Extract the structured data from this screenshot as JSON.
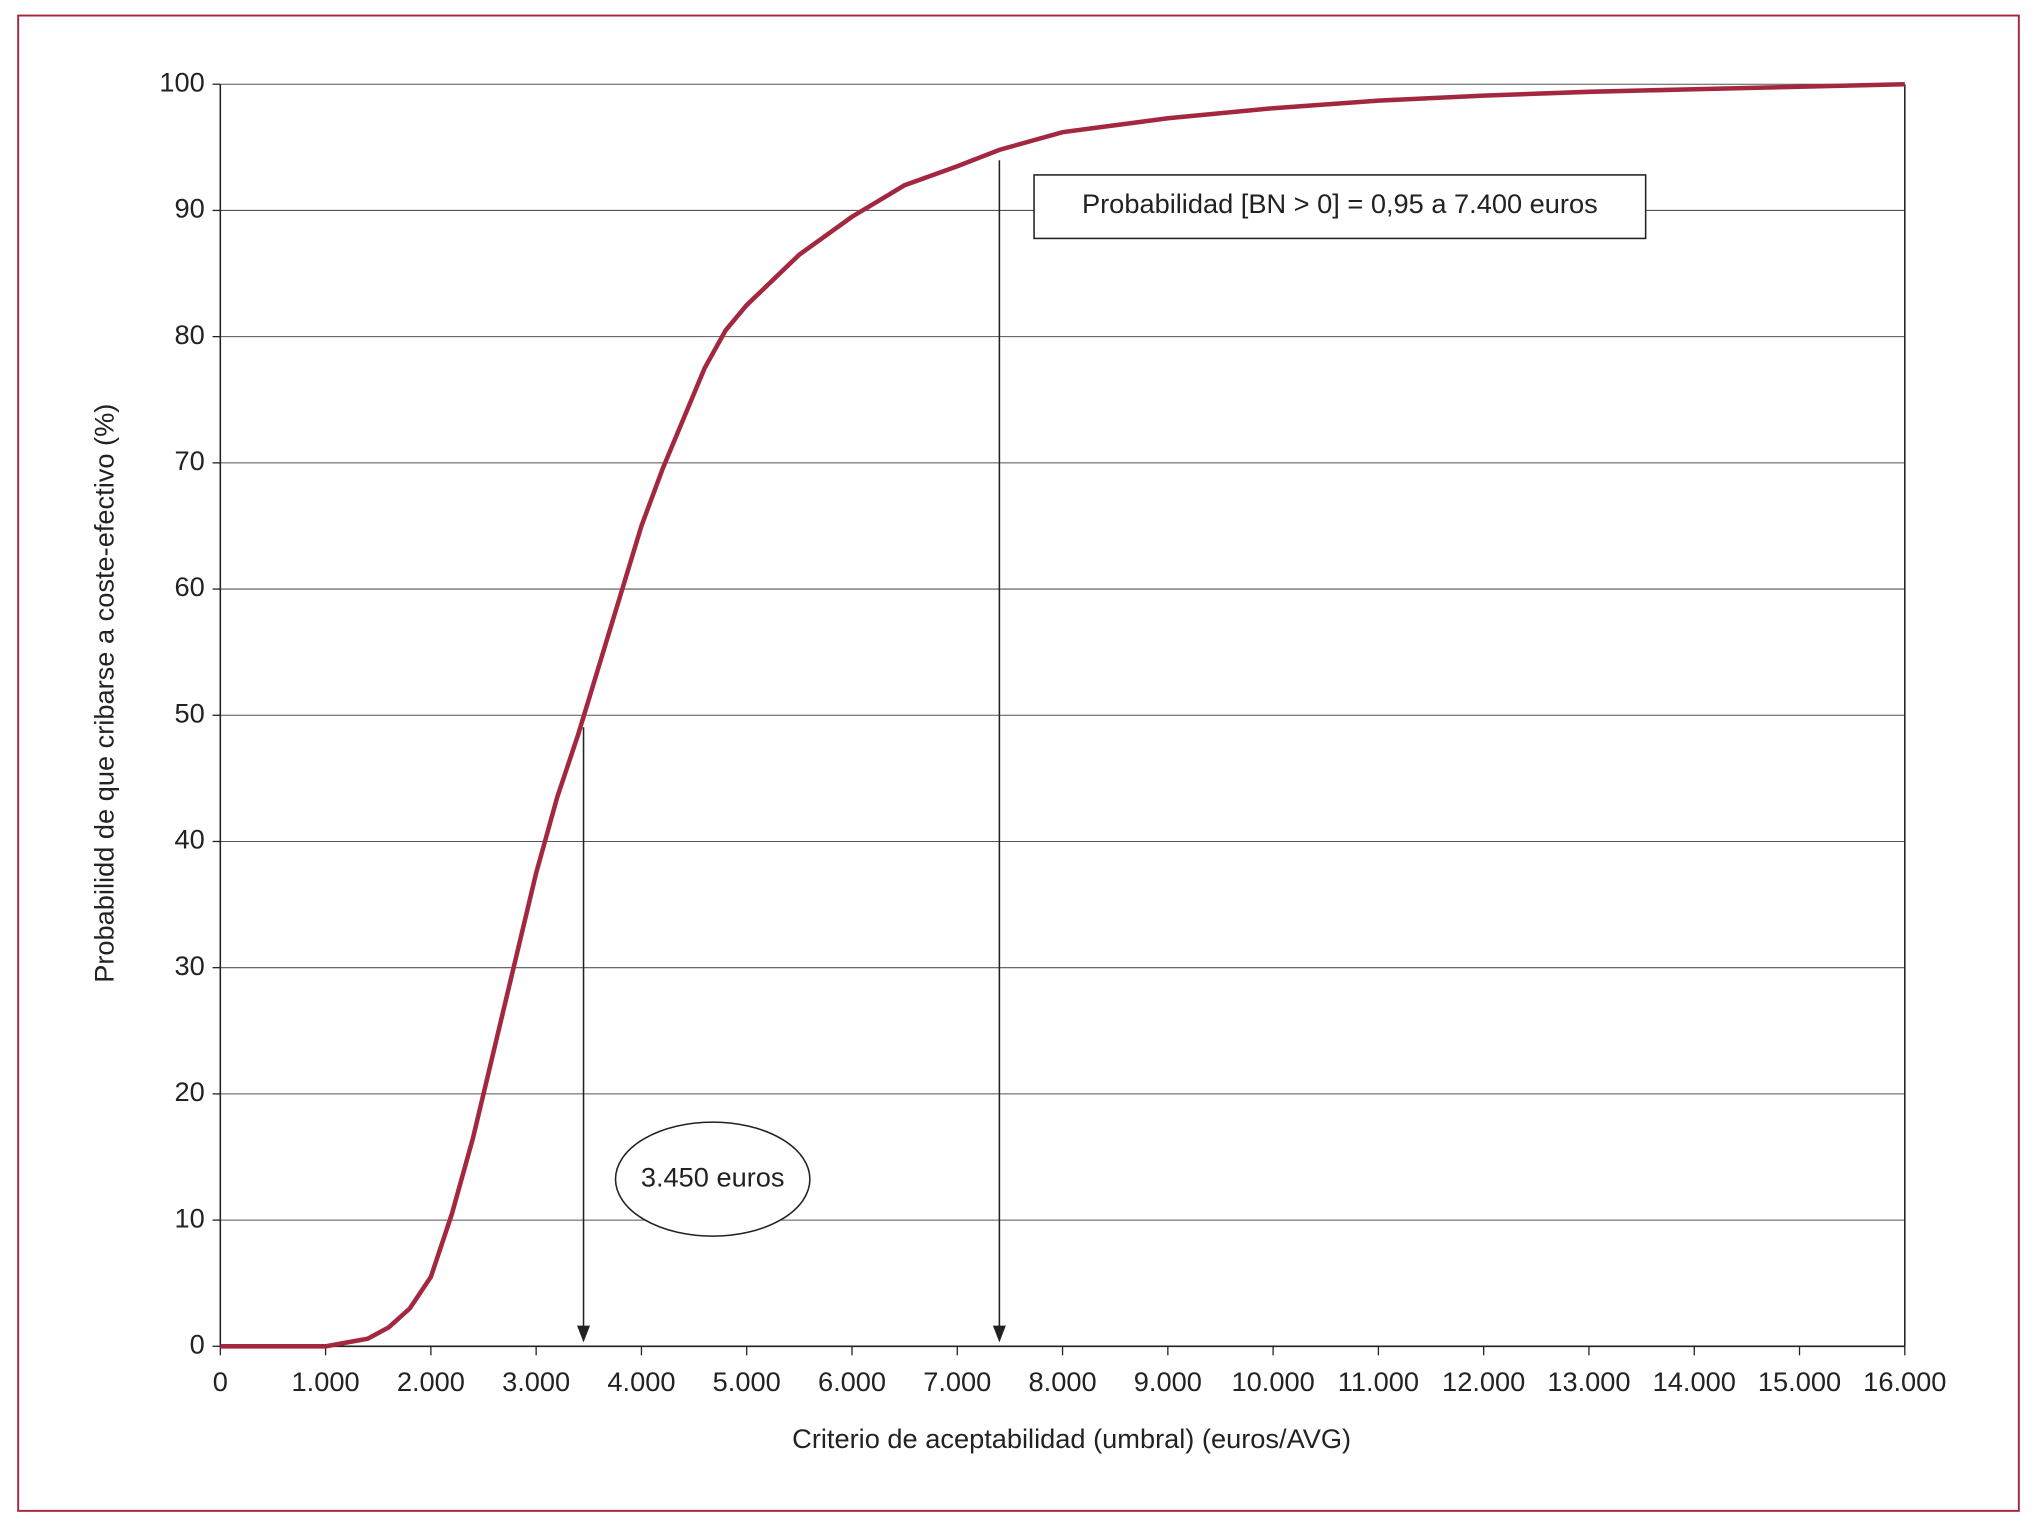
{
  "chart_data": {
    "type": "line",
    "xlabel": "Criterio de aceptabilidad (umbral) (euros/AVG)",
    "ylabel": "Probabilidd de que cribarse a coste-efectivo (%)",
    "x": [
      0,
      500,
      1000,
      1200,
      1400,
      1600,
      1800,
      2000,
      2200,
      2400,
      2600,
      2800,
      3000,
      3200,
      3400,
      3600,
      3800,
      4000,
      4200,
      4400,
      4600,
      4800,
      5000,
      5500,
      6000,
      6500,
      7000,
      7400,
      8000,
      9000,
      10000,
      11000,
      12000,
      13000,
      14000,
      15000,
      16000
    ],
    "values": [
      0,
      0,
      0,
      0.3,
      0.6,
      1.5,
      3,
      5.5,
      10.5,
      16.5,
      23.5,
      30.5,
      37.5,
      43.5,
      48.5,
      54,
      59.5,
      65,
      69.5,
      73.5,
      77.5,
      80.5,
      82.5,
      86.5,
      89.5,
      92,
      93.5,
      94.8,
      96.2,
      97.3,
      98.1,
      98.7,
      99.1,
      99.4,
      99.6,
      99.8,
      100
    ],
    "color": "#a3283f",
    "xlim": [
      0,
      16000
    ],
    "xticks": [
      0,
      {
        "value": 1000,
        "label": "1.000"
      },
      {
        "value": 2000,
        "label": "2.000"
      },
      {
        "value": 3000,
        "label": "3.000"
      },
      {
        "value": 4000,
        "label": "4.000"
      },
      {
        "value": 5000,
        "label": "5.000"
      },
      {
        "value": 6000,
        "label": "6.000"
      },
      {
        "value": 7000,
        "label": "7.000"
      },
      {
        "value": 8000,
        "label": "8.000"
      },
      {
        "value": 9000,
        "label": "9.000"
      },
      {
        "value": 10000,
        "label": "10.000"
      },
      {
        "value": 11000,
        "label": "11.000"
      },
      {
        "value": 12000,
        "label": "12.000"
      },
      {
        "value": 13000,
        "label": "13.000"
      },
      {
        "value": 14000,
        "label": "14.000"
      },
      {
        "value": 15000,
        "label": "15.000"
      },
      {
        "value": 16000,
        "label": "16.000"
      }
    ],
    "ylim": [
      0,
      100
    ],
    "yticks": [
      0,
      10,
      20,
      30,
      40,
      50,
      60,
      70,
      80,
      90,
      100
    ],
    "grid": true,
    "annotations": [
      {
        "text": "3.450 euros",
        "x": 3450
      },
      {
        "text": "Probabilidad [BN > 0] = 0,95 a 7.400 euros",
        "x": 7400
      }
    ]
  }
}
